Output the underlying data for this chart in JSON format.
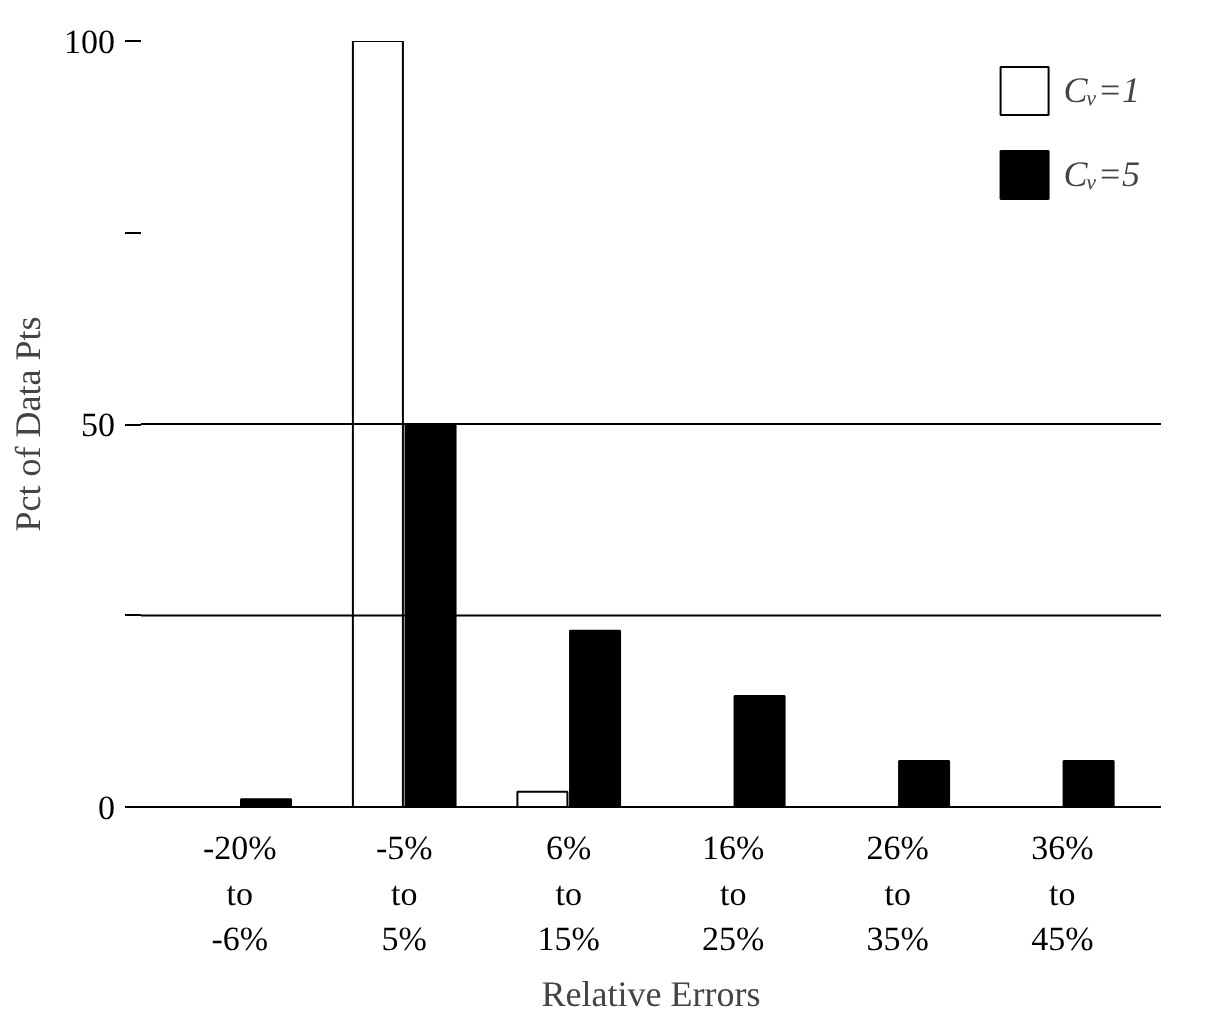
{
  "chart_data": {
    "type": "bar",
    "xlabel": "Relative Errors",
    "ylabel": "Pct of Data Pts",
    "categories": [
      "-20%\nto\n-6%",
      "-5%\nto\n5%",
      "6%\nto\n15%",
      "16%\nto\n25%",
      "26%\nto\n35%",
      "36%\nto\n45%"
    ],
    "series": [
      {
        "name": "Cᵥ=1",
        "color": "#ffffff",
        "values": [
          0,
          100,
          2,
          0,
          0,
          0
        ]
      },
      {
        "name": "Cᵥ=5",
        "color": "#000000",
        "values": [
          1,
          50,
          23,
          14.5,
          6,
          6
        ]
      }
    ],
    "ylim": [
      0,
      100
    ],
    "yticks": [
      0,
      {
        "value": 25,
        "label": null
      },
      50,
      {
        "value": 75,
        "label": null
      },
      100
    ],
    "ref_lines": [
      {
        "axis": "y",
        "value": 25
      },
      {
        "axis": "y",
        "value": 50
      }
    ],
    "grid": false,
    "legend": "top right"
  }
}
